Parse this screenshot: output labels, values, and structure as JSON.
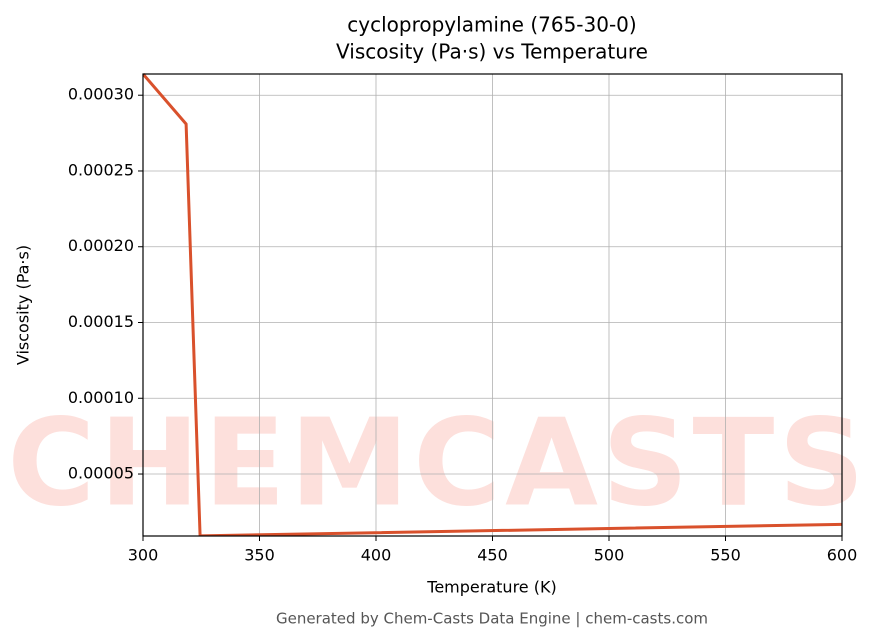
{
  "chart_data": {
    "type": "line",
    "title": "cyclopropylamine (765-30-0)",
    "subtitle": "Viscosity (Pa·s) vs Temperature",
    "xlabel": "Temperature (K)",
    "ylabel": "Viscosity (Pa·s)",
    "footer": "Generated by Chem-Casts Data Engine | chem-casts.com",
    "watermark": "CHEMCASTS",
    "x": [
      300,
      318.5,
      324.5,
      600
    ],
    "series": [
      {
        "name": "Viscosity",
        "color": "#d9512c",
        "values": [
          0.000314,
          0.000281,
          9.2e-06,
          1.68e-05
        ]
      }
    ],
    "xlim": [
      300,
      600
    ],
    "xticks": [
      300,
      350,
      400,
      450,
      500,
      550,
      600
    ],
    "ylim": [
      9.1e-06,
      0.000314
    ],
    "yticks": [
      {
        "value": 5e-05,
        "label": "0.00005"
      },
      {
        "value": 0.0001,
        "label": "0.00010"
      },
      {
        "value": 0.00015,
        "label": "0.00015"
      },
      {
        "value": 0.0002,
        "label": "0.00020"
      },
      {
        "value": 0.00025,
        "label": "0.00025"
      },
      {
        "value": 0.0003,
        "label": "0.00030"
      }
    ],
    "grid": true
  }
}
